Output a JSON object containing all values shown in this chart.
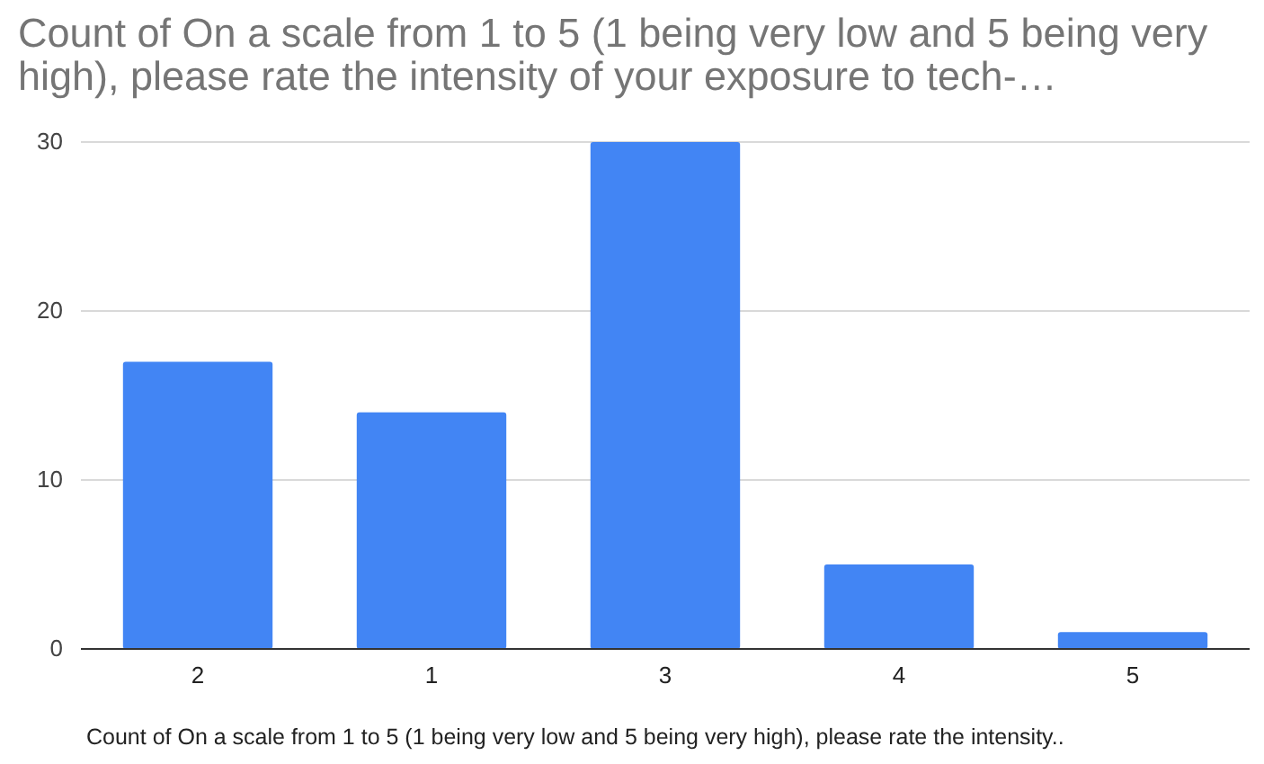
{
  "chart_data": {
    "type": "bar",
    "title": "Count of On a scale from 1 to 5 (1 being very low and 5 being very high), please rate the intensity of your exposure to tech-…",
    "xlabel": "Count of On a scale from 1 to 5 (1 being very low and 5 being very high), please rate the intensity..",
    "categories": [
      "2",
      "1",
      "3",
      "4",
      "5"
    ],
    "values": [
      17,
      14,
      30,
      5,
      1
    ],
    "color": "#4285f4",
    "ylim": [
      0,
      30
    ],
    "yticks": [
      0,
      10,
      20,
      30
    ],
    "grid": "y"
  }
}
